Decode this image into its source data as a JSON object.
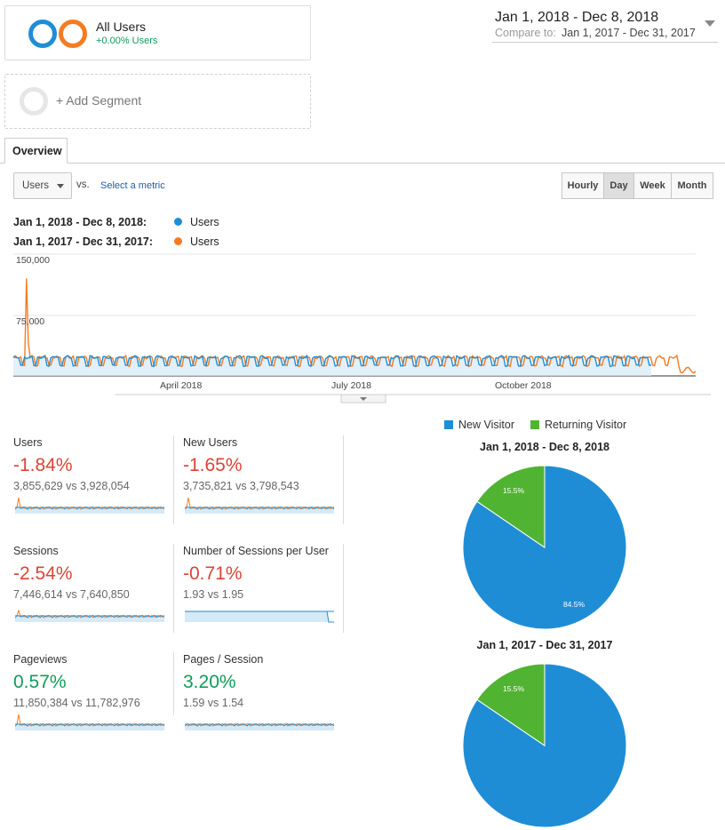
{
  "segment": {
    "name": "All Users",
    "change": "+0.00% Users"
  },
  "add_segment": "+ Add Segment",
  "date_range": {
    "main": "Jan 1, 2018 - Dec 8, 2018",
    "compare_label": "Compare to:",
    "compare_range": "Jan 1, 2017 - Dec 31, 2017"
  },
  "tabs": [
    "Overview"
  ],
  "metric_select": {
    "value": "Users",
    "vs": "vs.",
    "select_metric": "Select a metric"
  },
  "granularity": [
    "Hourly",
    "Day",
    "Week",
    "Month"
  ],
  "granularity_active": "Day",
  "legend": [
    {
      "range": "Jan 1, 2018 - Dec 8, 2018:",
      "series": "Users",
      "color": "#1f8dd6"
    },
    {
      "range": "Jan 1, 2017 - Dec 31, 2017:",
      "series": "Users",
      "color": "#f37c22"
    }
  ],
  "chart_data": {
    "type": "line",
    "ylim": [
      0,
      150000
    ],
    "y_ticks": [
      "150,000",
      "75,000"
    ],
    "x_ticks": [
      "April 2018",
      "July 2018",
      "October 2018"
    ],
    "series": [
      {
        "name": "Users",
        "color": "#1f8dd6",
        "baseline": 12000,
        "peak": 25000
      },
      {
        "name": "Users",
        "color": "#f37c22",
        "baseline": 12000,
        "peak": 25000,
        "spike": 120000
      }
    ]
  },
  "metrics": [
    {
      "name": "Users",
      "pct": "-1.84%",
      "vs": "3,855,629 vs 3,928,054",
      "trend": "red"
    },
    {
      "name": "New Users",
      "pct": "-1.65%",
      "vs": "3,735,821 vs 3,798,543",
      "trend": "red"
    },
    {
      "name": "Sessions",
      "pct": "-2.54%",
      "vs": "7,446,614 vs 7,640,850",
      "trend": "red"
    },
    {
      "name": "Number of Sessions per User",
      "pct": "-0.71%",
      "vs": "1.93 vs 1.95",
      "trend": "red"
    },
    {
      "name": "Pageviews",
      "pct": "0.57%",
      "vs": "11,850,384 vs 11,782,976",
      "trend": "green"
    },
    {
      "name": "Pages / Session",
      "pct": "3.20%",
      "vs": "1.59 vs 1.54",
      "trend": "green"
    }
  ],
  "pie_legend": [
    {
      "label": "New Visitor",
      "color": "#1f8dd6"
    },
    {
      "label": "Returning Visitor",
      "color": "#50b432"
    }
  ],
  "pies": [
    {
      "title": "Jan 1, 2018 - Dec 8, 2018",
      "new_label": "84.5%",
      "returning_label": "15.5%",
      "new": 84.5,
      "returning": 15.5
    },
    {
      "title": "Jan 1, 2017 - Dec 31, 2017",
      "new_label": "",
      "returning_label": "15.5%",
      "new": 84.5,
      "returning": 15.5
    }
  ]
}
